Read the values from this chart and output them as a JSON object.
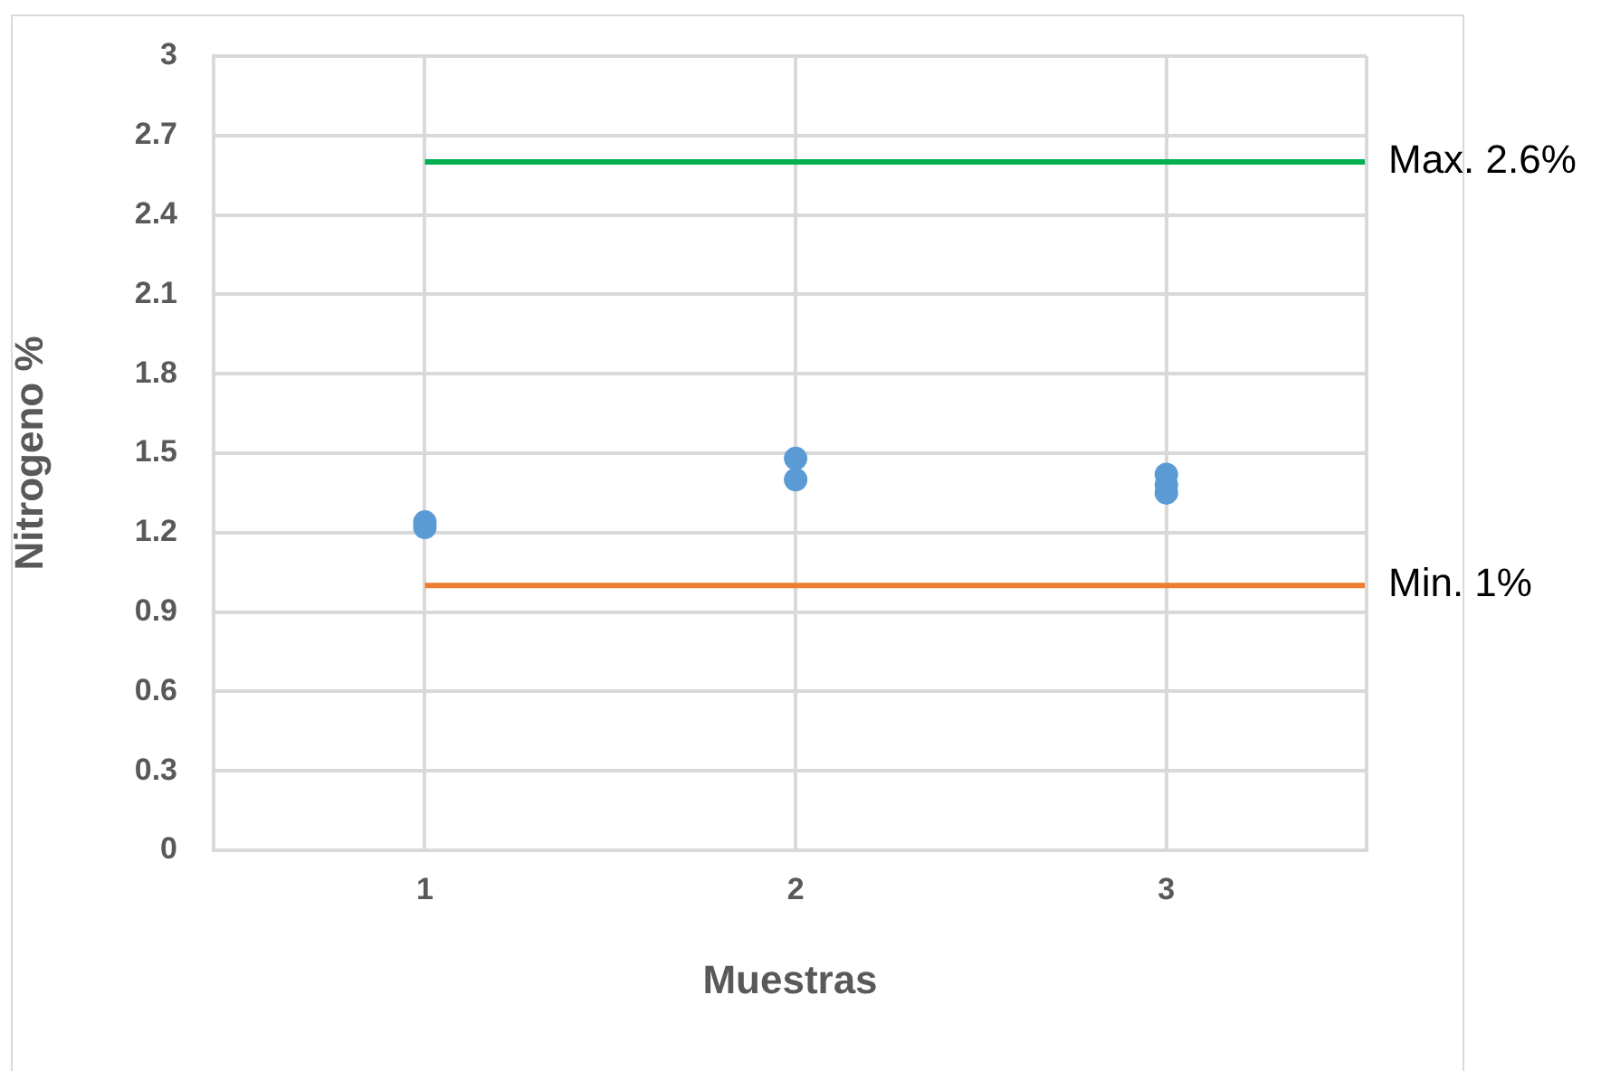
{
  "chart_data": {
    "type": "scatter",
    "xlabel": "Muestras",
    "ylabel": "Nitrogeno %",
    "xlim": [
      0.43,
      3.54
    ],
    "xticks": [
      1,
      2,
      3
    ],
    "ylim": [
      0,
      3
    ],
    "yticks": [
      0,
      0.3,
      0.6,
      0.9,
      1.2,
      1.5,
      1.8,
      2.1,
      2.4,
      2.7,
      3
    ],
    "grid": true,
    "legend": false,
    "series": [
      {
        "marker": "circle",
        "color": "#5b9bd5",
        "x": [
          1,
          1,
          2,
          2,
          3,
          3,
          3
        ],
        "values": [
          1.22,
          1.24,
          1.4,
          1.48,
          1.35,
          1.38,
          1.42
        ]
      },
      {
        "type": "line",
        "marker": "none",
        "name": "Max. 2.6%",
        "color": "#00b050",
        "x": [
          1,
          3.54
        ],
        "values": [
          2.6,
          2.6
        ]
      },
      {
        "type": "line",
        "marker": "none",
        "name": "Min. 1%",
        "color": "#ed7d31",
        "x": [
          1,
          3.54
        ],
        "values": [
          1,
          1
        ]
      }
    ]
  }
}
